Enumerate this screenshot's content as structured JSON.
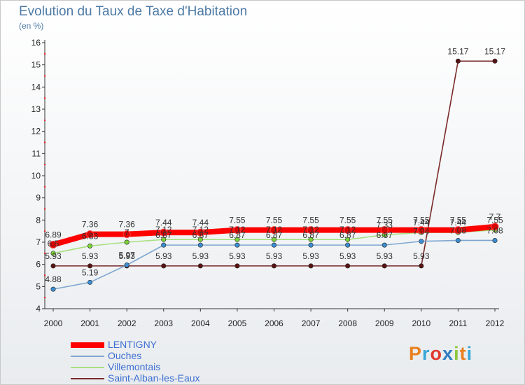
{
  "title": "Evolution du Taux de Taxe d'Habitation",
  "subtitle": "(en %)",
  "logo": {
    "text": "Proxiti",
    "colors": [
      "#e8801f",
      "#3aa6d8",
      "#e03a2f",
      "#2e7dc0",
      "#8dc63f",
      "#e8801f",
      "#3aa6d8"
    ]
  },
  "chart_data": {
    "type": "line",
    "x": [
      "2000",
      "2001",
      "2002",
      "2003",
      "2004",
      "2005",
      "2006",
      "2007",
      "2008",
      "2009",
      "2010",
      "2011",
      "2012"
    ],
    "ylim": [
      4,
      16
    ],
    "yticks": [
      "4",
      "5",
      "6",
      "7",
      "8",
      "9",
      "10",
      "11",
      "12",
      "13",
      "14",
      "15",
      "16"
    ],
    "grid": false,
    "legend_position": "bottom-left",
    "series": [
      {
        "name": "Saint-Alban-les-Eaux",
        "color": "#7a2a2a",
        "marker": "#5a1414",
        "values": [
          5.93,
          5.93,
          5.93,
          5.93,
          5.93,
          5.93,
          5.93,
          5.93,
          5.93,
          5.93,
          5.93,
          15.17,
          15.17
        ],
        "labels": [
          "5.93",
          "5.93",
          "5.93",
          "5.93",
          "5.93",
          "5.93",
          "5.93",
          "5.93",
          "5.93",
          "5.93",
          "5.93",
          "15.17",
          "15.17"
        ]
      },
      {
        "name": "Ouches",
        "color": "#7fa7cf",
        "marker": "#3c8fd4",
        "values": [
          4.88,
          5.19,
          5.97,
          6.87,
          6.87,
          6.87,
          6.87,
          6.87,
          6.87,
          6.87,
          7.04,
          7.08,
          7.08
        ],
        "labels": [
          "4.88",
          "5.19",
          "5.97",
          "6.87",
          "6.87",
          "6.87",
          "6.87",
          "6.87",
          "6.87",
          "6.87",
          "7.04",
          "7.08",
          "7.08"
        ]
      },
      {
        "name": "Villemontais",
        "color": "#a8e080",
        "marker": "#7ed13a",
        "values": [
          6.5,
          6.83,
          7.0,
          7.12,
          7.12,
          7.12,
          7.12,
          7.12,
          7.12,
          7.33,
          7.44,
          7.44,
          7.55
        ],
        "labels": [
          "6.5",
          "6.83",
          "7",
          "7.12",
          "7.12",
          "7.12",
          "7.12",
          "7.12",
          "7.12",
          "7.33",
          "7.44",
          "7.44",
          "7.55"
        ]
      },
      {
        "name": "LENTIGNY",
        "color": "#ff0000",
        "marker": "#dd0000",
        "values": [
          6.89,
          7.36,
          7.36,
          7.44,
          7.44,
          7.55,
          7.55,
          7.55,
          7.55,
          7.55,
          7.55,
          7.55,
          7.7
        ],
        "labels": [
          "6.89",
          "7.36",
          "7.36",
          "7.44",
          "7.44",
          "7.55",
          "7.55",
          "7.55",
          "7.55",
          "7.55",
          "7.55",
          "7.55",
          "7.7"
        ]
      }
    ],
    "legend_order": [
      "LENTIGNY",
      "Ouches",
      "Villemontais",
      "Saint-Alban-les-Eaux"
    ]
  }
}
